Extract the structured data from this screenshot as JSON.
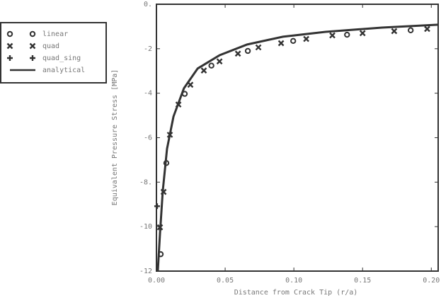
{
  "chart_data": {
    "type": "scatter",
    "xlabel": "Distance from Crack Tip (r/a)",
    "ylabel": "Equivalent Pressure Stress [MPa]",
    "xlim": [
      0,
      0.205
    ],
    "ylim": [
      -12,
      0
    ],
    "xticks": [
      {
        "value": 0,
        "label": "0.00"
      },
      {
        "value": 0.05,
        "label": "0.05"
      },
      {
        "value": 0.1,
        "label": "0.10"
      },
      {
        "value": 0.15,
        "label": "0.15"
      },
      {
        "value": 0.2,
        "label": "0.20"
      }
    ],
    "yticks": [
      {
        "value": 0,
        "label": "0."
      },
      -2,
      -4,
      -6,
      {
        "value": -8,
        "label": "-8."
      },
      -10,
      -12
    ],
    "legend_position": "upper left outside",
    "series": [
      {
        "name": "linear",
        "marker": "circle",
        "color": "#333333",
        "x": [
          0.0031,
          0.0072,
          0.0206,
          0.04,
          0.0665,
          0.0995,
          0.1387,
          0.185
        ],
        "values": [
          -11.24,
          -7.14,
          -4.03,
          -2.76,
          -2.1,
          -1.65,
          -1.37,
          -1.17
        ]
      },
      {
        "name": "quad",
        "marker": "cross",
        "color": "#333333",
        "x": [
          0.0026,
          0.0052,
          0.0098,
          0.016,
          0.0247,
          0.0345,
          0.0459,
          0.0593,
          0.0742,
          0.0907,
          0.109,
          0.128,
          0.15,
          0.173,
          0.197
        ],
        "values": [
          -10.03,
          -8.44,
          -5.87,
          -4.51,
          -3.62,
          -2.98,
          -2.57,
          -2.22,
          -1.94,
          -1.75,
          -1.56,
          -1.4,
          -1.3,
          -1.21,
          -1.11
        ]
      },
      {
        "name": "quad_sing",
        "marker": "plus",
        "color": "#333333",
        "x": [
          0.0005
        ],
        "values": [
          -9.08
        ]
      },
      {
        "name": "analytical",
        "marker": "line",
        "color": "#333333",
        "x": [
          0.001,
          0.0026,
          0.0046,
          0.0077,
          0.0124,
          0.02,
          0.03,
          0.046,
          0.066,
          0.092,
          0.123,
          0.164,
          0.205
        ],
        "values": [
          -12,
          -10.3,
          -8.4,
          -6.5,
          -5.05,
          -3.78,
          -2.89,
          -2.29,
          -1.81,
          -1.46,
          -1.24,
          -1.05,
          -0.92
        ]
      }
    ]
  }
}
